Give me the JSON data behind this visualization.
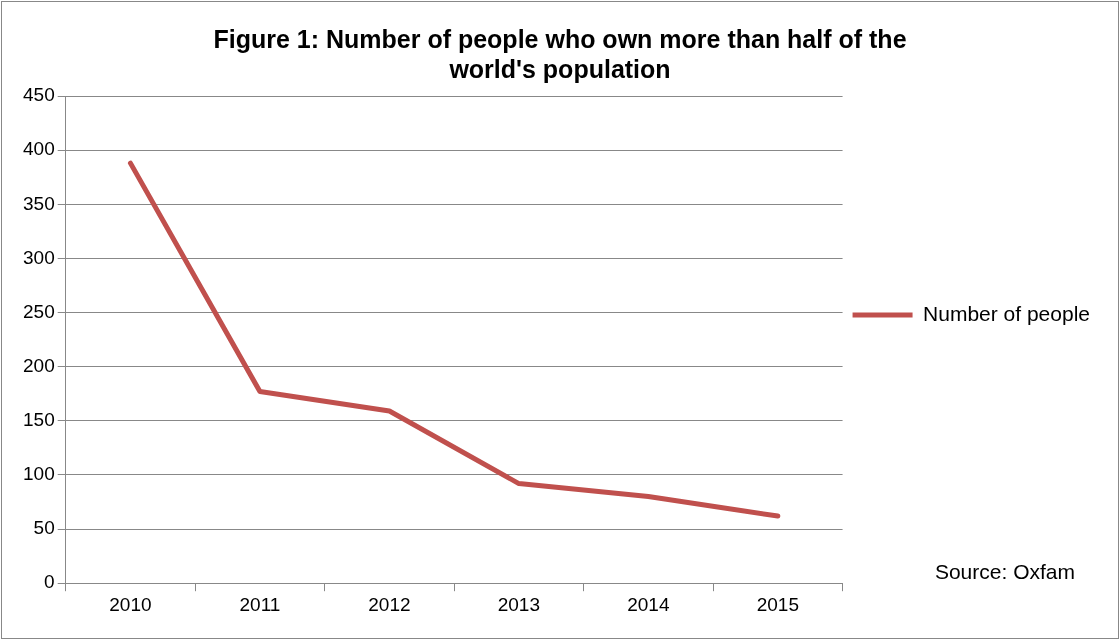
{
  "chart_data": {
    "type": "line",
    "title": "Figure 1: Number of people who own more than half of the world's population",
    "categories": [
      "2010",
      "2011",
      "2012",
      "2013",
      "2014",
      "2015"
    ],
    "series": [
      {
        "name": "Number of people",
        "color": "#c0504d",
        "values": [
          388,
          177,
          159,
          92,
          80,
          62
        ]
      }
    ],
    "ylim": [
      0,
      450
    ],
    "yticks": [
      0,
      50,
      100,
      150,
      200,
      250,
      300,
      350,
      400,
      450
    ],
    "grid": "y",
    "legend": "right",
    "marker": "none",
    "line_style": "solid",
    "annotations": [
      "Source: Oxfam"
    ]
  }
}
